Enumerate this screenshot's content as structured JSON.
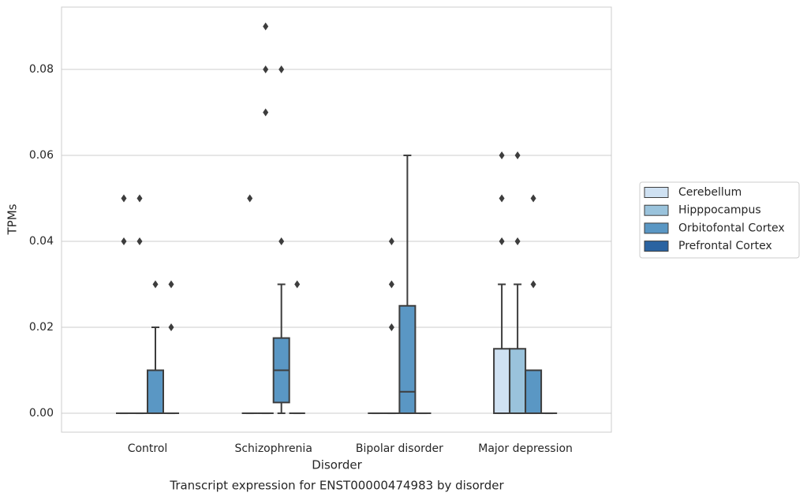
{
  "chart_data": {
    "type": "box",
    "title": "Transcript expression for ENST00000474983 by disorder",
    "xlabel": "Disorder",
    "ylabel": "TPMs",
    "categories": [
      "Control",
      "Schizophrenia",
      "Bipolar disorder",
      "Major depression"
    ],
    "ylim": [
      -0.0044,
      0.0945
    ],
    "yticks": [
      {
        "value": 0,
        "label": "0.00"
      },
      0.02,
      0.04,
      0.06,
      0.08
    ],
    "grid": true,
    "legend": "right",
    "series": [
      {
        "name": "Cerebellum",
        "color": "#cfe1f2",
        "min": [
          0,
          0,
          0,
          0
        ],
        "q1": [
          0,
          0,
          0,
          0
        ],
        "median": [
          0,
          0,
          0,
          0
        ],
        "q3": [
          0,
          0,
          0,
          0.015
        ],
        "max": [
          0,
          0,
          0,
          0.03
        ],
        "outliers": [
          [
            0.05,
            0.04
          ],
          [
            0.05
          ],
          [],
          [
            0.06,
            0.05,
            0.04
          ]
        ]
      },
      {
        "name": "Hipppocampus",
        "color": "#9ac3dc",
        "min": [
          0,
          0,
          0,
          0
        ],
        "q1": [
          0,
          0,
          0,
          0
        ],
        "median": [
          0,
          0,
          0,
          0
        ],
        "q3": [
          0,
          0,
          0,
          0.015
        ],
        "max": [
          0,
          0,
          0,
          0.03
        ],
        "outliers": [
          [
            0.05,
            0.04
          ],
          [
            0.09,
            0.08,
            0.07
          ],
          [
            0.04,
            0.03,
            0.02
          ],
          [
            0.06,
            0.04
          ]
        ]
      },
      {
        "name": "Orbitofontal Cortex",
        "color": "#5a97c4",
        "min": [
          0,
          0,
          0,
          0
        ],
        "q1": [
          0,
          0.0025,
          0,
          0
        ],
        "median": [
          0,
          0.01,
          0.005,
          0
        ],
        "q3": [
          0.01,
          0.0175,
          0.025,
          0.01
        ],
        "max": [
          0.02,
          0.03,
          0.06,
          0.01
        ],
        "outliers": [
          [
            0.03
          ],
          [
            0.08,
            0.04
          ],
          [],
          [
            0.05,
            0.03
          ]
        ]
      },
      {
        "name": "Prefrontal Cortex",
        "color": "#2a63a1",
        "min": [
          0,
          0,
          0,
          0
        ],
        "q1": [
          0,
          0,
          0,
          0
        ],
        "median": [
          0,
          0,
          0,
          0
        ],
        "q3": [
          0,
          0,
          0,
          0
        ],
        "max": [
          0,
          0,
          0,
          0
        ],
        "outliers": [
          [
            0.03,
            0.02
          ],
          [
            0.03
          ],
          [],
          []
        ]
      }
    ]
  }
}
